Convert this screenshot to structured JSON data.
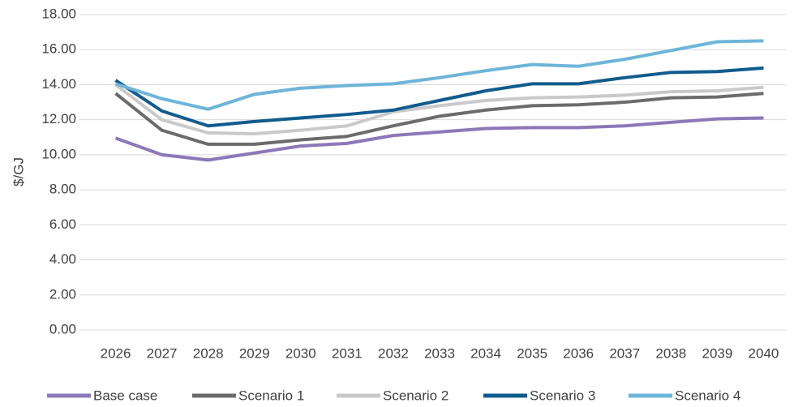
{
  "chart_data": {
    "type": "line",
    "y_label": "$/GJ",
    "categories": [
      "2026",
      "2027",
      "2028",
      "2029",
      "2030",
      "2031",
      "2032",
      "2033",
      "2034",
      "2035",
      "2036",
      "2037",
      "2038",
      "2039",
      "2040"
    ],
    "series": [
      {
        "name": "Base case",
        "color": "#8b78b8",
        "values": [
          10.95,
          10.0,
          9.7,
          10.1,
          10.5,
          10.65,
          11.1,
          11.3,
          11.5,
          11.55,
          11.55,
          11.65,
          11.85,
          12.05,
          12.1
        ]
      },
      {
        "name": "Scenario 1",
        "color": "#6b6b6b",
        "values": [
          13.5,
          11.4,
          10.6,
          10.6,
          10.85,
          11.05,
          11.65,
          12.2,
          12.55,
          12.8,
          12.85,
          13.0,
          13.25,
          13.3,
          13.5
        ]
      },
      {
        "name": "Scenario 2",
        "color": "#c9c9c9",
        "values": [
          14.0,
          12.0,
          11.25,
          11.2,
          11.4,
          11.65,
          12.45,
          12.8,
          13.1,
          13.25,
          13.3,
          13.4,
          13.6,
          13.65,
          13.85
        ]
      },
      {
        "name": "Scenario 3",
        "color": "#105c8e",
        "values": [
          14.25,
          12.5,
          11.65,
          11.9,
          12.1,
          12.3,
          12.55,
          13.1,
          13.65,
          14.05,
          14.05,
          14.4,
          14.7,
          14.75,
          14.95
        ]
      },
      {
        "name": "Scenario 4",
        "color": "#6db5d9",
        "values": [
          14.05,
          13.2,
          12.6,
          13.45,
          13.8,
          13.95,
          14.05,
          14.4,
          14.8,
          15.15,
          15.05,
          15.45,
          15.95,
          16.45,
          16.5
        ]
      }
    ],
    "ylim": [
      0,
      18
    ],
    "yticks": [
      {
        "value": 0,
        "label": "0.00"
      },
      {
        "value": 2,
        "label": "2.00"
      },
      {
        "value": 4,
        "label": "4.00"
      },
      {
        "value": 6,
        "label": "6.00"
      },
      {
        "value": 8,
        "label": "8.00"
      },
      {
        "value": 10,
        "label": "10.00"
      },
      {
        "value": 12,
        "label": "12.00"
      },
      {
        "value": 14,
        "label": "14.00"
      },
      {
        "value": 16,
        "label": "16.00"
      },
      {
        "value": 18,
        "label": "18.00"
      }
    ],
    "grid": true,
    "legend": "bottom"
  }
}
